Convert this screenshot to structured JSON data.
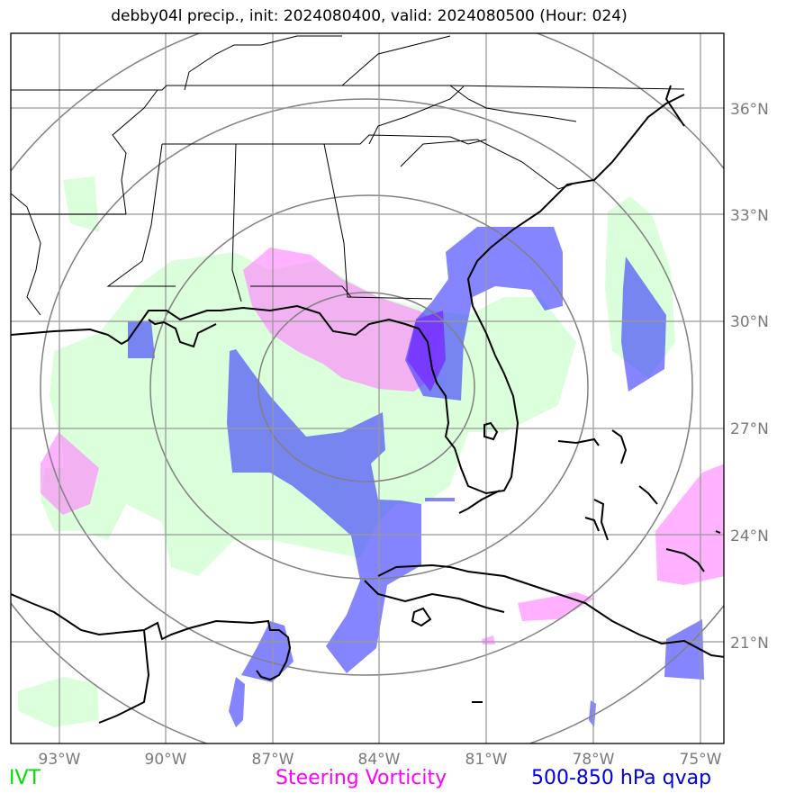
{
  "title": "debby04l precip., init: 2024080400, valid: 2024080500 (Hour: 024)",
  "axes": {
    "lon_labels": [
      "93°W",
      "90°W",
      "87°W",
      "84°W",
      "81°W",
      "78°W",
      "75°W"
    ],
    "lat_labels": [
      "36°N",
      "33°N",
      "30°N",
      "27°N",
      "24°N",
      "21°N"
    ]
  },
  "legend": {
    "ivt": "IVT",
    "steering_vorticity": "Steering Vorticity",
    "qvap": "500-850 hPa qvap"
  },
  "colors": {
    "ivt": "#ccffcc",
    "steering_vorticity": "#ff99ff",
    "qvap": "#3333ff",
    "grid": "#999999",
    "range_rings": "#808080",
    "coastline": "#000000"
  },
  "map_data": {
    "storm": "debby04l",
    "lon_range": [
      -94.3,
      -74.3
    ],
    "lat_range": [
      18.3,
      38.2
    ],
    "range_rings_center": {
      "lon": -83.7,
      "lat": 28.2
    },
    "range_ring_count": 4
  }
}
